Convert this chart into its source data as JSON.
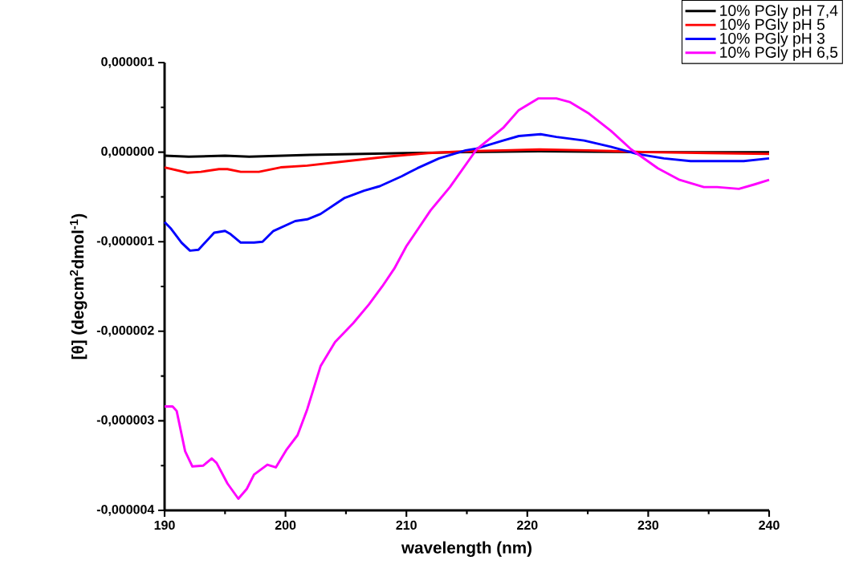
{
  "chart_data": {
    "type": "line",
    "xlabel": "wavelength (nm)",
    "ylabel": "[θ] (degcm$^{2}$dmol$^{-1}$)",
    "xlim": [
      190,
      240
    ],
    "xticks": [
      190,
      200,
      210,
      220,
      230,
      240
    ],
    "ylim": [
      -4e-06,
      1e-06
    ],
    "yticks": [
      {
        "value": -4e-06,
        "label": "-0,000004"
      },
      {
        "value": -3e-06,
        "label": "-0,000003"
      },
      {
        "value": -2e-06,
        "label": "-0,000002"
      },
      {
        "value": -1e-06,
        "label": "-0,000001"
      },
      {
        "value": 0,
        "label": "0,000000"
      },
      {
        "value": 1e-06,
        "label": "0,000001"
      }
    ],
    "legend": "top right",
    "grid": false,
    "marker": "none",
    "line_style": "solid",
    "series": [
      {
        "name": "10% PGly pH 7,4",
        "color": "#000000",
        "x": [
          190,
          192,
          195,
          197,
          202,
          210,
          215,
          221,
          230,
          240
        ],
        "values": [
          -4e-08,
          -5e-08,
          -4e-08,
          -5e-08,
          -3e-08,
          -1e-08,
          0,
          1e-08,
          0,
          0
        ]
      },
      {
        "name": "10% PGly pH 5",
        "color": "#ff0000",
        "x": [
          190,
          191.9,
          193,
          194.5,
          195.2,
          196.3,
          197.8,
          199.6,
          201.8,
          205.1,
          208.4,
          211.8,
          214.9,
          218,
          221,
          225,
          230,
          235,
          240
        ],
        "values": [
          -1.7e-07,
          -2.3e-07,
          -2.2e-07,
          -1.9e-07,
          -1.9e-07,
          -2.2e-07,
          -2.2e-07,
          -1.7e-07,
          -1.5e-07,
          -1e-07,
          -5e-08,
          -1e-08,
          1e-08,
          2e-08,
          3e-08,
          2e-08,
          0,
          -1e-08,
          -2e-08
        ]
      },
      {
        "name": "10% PGly pH 3",
        "color": "#0000ff",
        "x": [
          190,
          190.5,
          191.4,
          192.1,
          192.8,
          194.1,
          195,
          195.4,
          196.3,
          197.4,
          198.1,
          199,
          200.8,
          201.8,
          202.9,
          204.9,
          206.5,
          207.8,
          209.6,
          210.9,
          212.7,
          214.9,
          215.8,
          218,
          219.3,
          221.1,
          222.4,
          224.7,
          226.9,
          229.1,
          231.3,
          233.5,
          235.7,
          237.9,
          240
        ],
        "values": [
          -7.8e-07,
          -8.5e-07,
          -1.01e-06,
          -1.1e-06,
          -1.09e-06,
          -9e-07,
          -8.8e-07,
          -9.1e-07,
          -1.01e-06,
          -1.01e-06,
          -1e-06,
          -8.8e-07,
          -7.7e-07,
          -7.5e-07,
          -6.9e-07,
          -5.1e-07,
          -4.3e-07,
          -3.8e-07,
          -2.7e-07,
          -1.8e-07,
          -7e-08,
          2e-08,
          4e-08,
          1.3e-07,
          1.8e-07,
          2e-07,
          1.7e-07,
          1.3e-07,
          6e-08,
          -2e-08,
          -7e-08,
          -1e-07,
          -1e-07,
          -1e-07,
          -7e-08
        ]
      },
      {
        "name": "10% PGly pH 6,5",
        "color": "#ff00ff",
        "x": [
          190,
          190.66,
          191,
          191.7,
          192.3,
          193.2,
          193.9,
          194.3,
          195.2,
          196.1,
          196.8,
          197.4,
          198.5,
          199.2,
          200.1,
          201,
          201.8,
          202.9,
          204.1,
          205.6,
          206.9,
          208,
          209,
          210,
          211,
          212,
          213.6,
          215.8,
          218,
          219.3,
          220.9,
          222.4,
          223.5,
          225.1,
          226.9,
          228.6,
          230.8,
          232.6,
          234.6,
          235.7,
          237.5,
          238.8,
          240
        ],
        "values": [
          -2.84e-06,
          -2.84e-06,
          -2.89e-06,
          -3.34e-06,
          -3.51e-06,
          -3.5e-06,
          -3.42e-06,
          -3.47e-06,
          -3.7e-06,
          -3.87e-06,
          -3.76e-06,
          -3.6e-06,
          -3.49e-06,
          -3.52e-06,
          -3.32e-06,
          -3.16e-06,
          -2.87e-06,
          -2.39e-06,
          -2.12e-06,
          -1.91e-06,
          -1.7e-06,
          -1.5e-06,
          -1.3e-06,
          -1.05e-06,
          -8.5e-07,
          -6.5e-07,
          -3.9e-07,
          3e-08,
          2.7e-07,
          4.7e-07,
          6e-07,
          6e-07,
          5.6e-07,
          4.3e-07,
          2.4e-07,
          3e-08,
          -1.8e-07,
          -3.1e-07,
          -3.9e-07,
          -3.9e-07,
          -4.1e-07,
          -3.6e-07,
          -3.1e-07
        ]
      }
    ]
  }
}
